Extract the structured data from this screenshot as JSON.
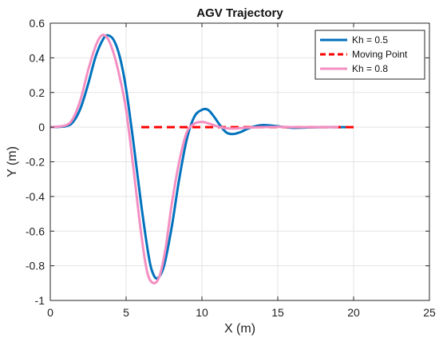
{
  "chart_data": {
    "type": "line",
    "title": "AGV Trajectory",
    "xlabel": "X (m)",
    "ylabel": "Y (m)",
    "xlim": [
      0,
      25
    ],
    "ylim": [
      -1,
      0.6
    ],
    "xticks": [
      0,
      5,
      10,
      15,
      20,
      25
    ],
    "yticks": [
      0.6,
      0.4,
      0.2,
      0,
      -0.2,
      -0.4,
      -0.6,
      -0.8,
      -1
    ],
    "grid": true,
    "legend_position": "top-right",
    "series": [
      {
        "name": "Kh = 0.5",
        "color": "#0072BD",
        "style": "solid",
        "x": [
          0,
          1,
          1.5,
          2,
          2.5,
          3,
          3.5,
          3.8,
          4.2,
          4.6,
          5,
          5.5,
          6,
          6.5,
          6.8,
          7.1,
          7.5,
          8,
          8.5,
          9,
          9.5,
          10,
          10.4,
          10.8,
          11.2,
          11.6,
          12,
          12.5,
          13,
          13.5,
          14,
          14.5,
          15,
          15.5,
          16,
          17,
          18,
          19,
          19.5
        ],
        "y": [
          0,
          0.005,
          0.03,
          0.11,
          0.25,
          0.41,
          0.51,
          0.53,
          0.5,
          0.4,
          0.22,
          -0.1,
          -0.45,
          -0.75,
          -0.85,
          -0.87,
          -0.8,
          -0.58,
          -0.3,
          -0.07,
          0.06,
          0.1,
          0.1,
          0.06,
          0.01,
          -0.03,
          -0.04,
          -0.03,
          -0.01,
          0.005,
          0.012,
          0.01,
          0.005,
          0,
          -0.004,
          -0.002,
          0,
          0,
          0
        ]
      },
      {
        "name": "Moving Point",
        "color": "#FF0000",
        "style": "dashed",
        "x": [
          6,
          20
        ],
        "y": [
          0,
          0
        ]
      },
      {
        "name": "Kh = 0.8",
        "color": "#F48FC2",
        "style": "solid",
        "x": [
          0,
          1,
          1.5,
          2,
          2.5,
          3,
          3.4,
          3.8,
          4.2,
          4.6,
          5,
          5.5,
          6,
          6.4,
          6.8,
          7.2,
          7.6,
          8,
          8.5,
          9,
          9.5,
          10,
          10.5,
          11,
          11.5,
          12,
          12.5,
          13,
          14,
          15,
          16,
          17,
          18,
          19
        ],
        "y": [
          0,
          0.01,
          0.05,
          0.16,
          0.33,
          0.47,
          0.53,
          0.51,
          0.42,
          0.28,
          0.1,
          -0.25,
          -0.62,
          -0.84,
          -0.9,
          -0.86,
          -0.7,
          -0.45,
          -0.2,
          -0.03,
          0.02,
          0.03,
          0.02,
          0.005,
          -0.005,
          -0.008,
          -0.006,
          -0.003,
          0,
          0.002,
          0,
          0,
          0,
          0
        ]
      }
    ]
  }
}
